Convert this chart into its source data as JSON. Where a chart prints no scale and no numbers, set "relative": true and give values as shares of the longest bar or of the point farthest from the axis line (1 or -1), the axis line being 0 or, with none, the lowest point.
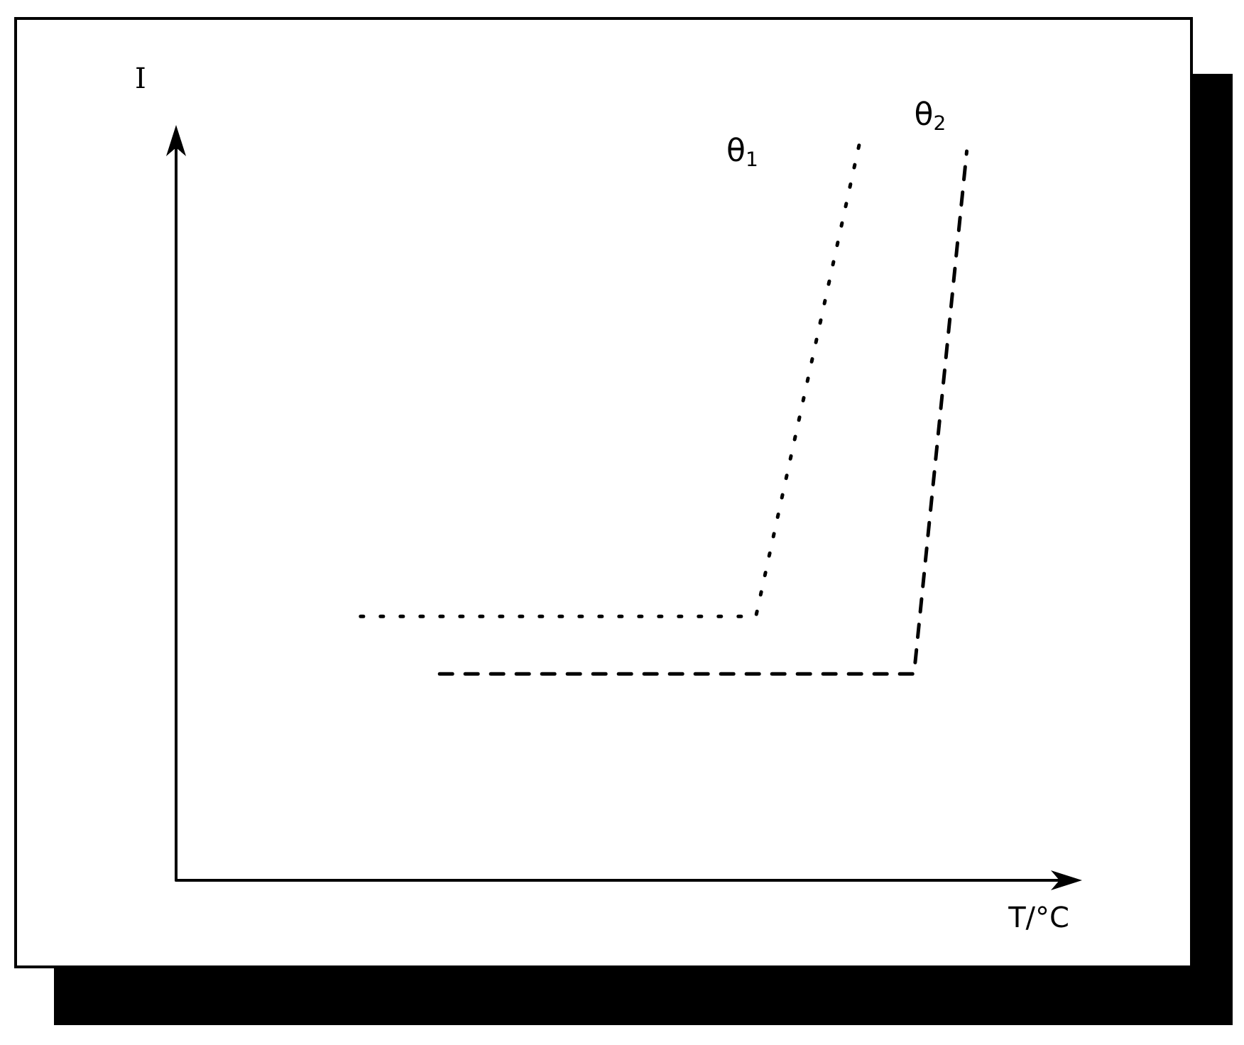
{
  "chart_data": {
    "type": "line",
    "relative": true,
    "xlabel": "T/°C",
    "ylabel": "I",
    "grid": false,
    "legend": false,
    "marker": "none",
    "categories": [
      null,
      null,
      null,
      null,
      null,
      null,
      null,
      null,
      null,
      null,
      null,
      null,
      null,
      null,
      null,
      null,
      null,
      null,
      null,
      null,
      null,
      null,
      null,
      null,
      null,
      null,
      null,
      null,
      null,
      null,
      null,
      null,
      null,
      null,
      null
    ],
    "series": [
      {
        "name": "θ$_{1}$",
        "color": "#000000",
        "line_style": "dotted",
        "values": [
          null,
          null,
          null,
          null,
          null,
          null,
          null,
          0.354,
          null,
          null,
          null,
          null,
          null,
          null,
          null,
          null,
          null,
          null,
          null,
          null,
          null,
          null,
          0.354,
          null,
          null,
          null,
          1,
          null,
          null,
          null,
          null,
          null,
          null,
          null,
          null
        ]
      },
      {
        "name": "θ$_{2}$",
        "color": "#000000",
        "line_style": "dashed",
        "values": [
          null,
          null,
          null,
          null,
          null,
          null,
          null,
          null,
          null,
          null,
          0.277,
          null,
          null,
          null,
          null,
          null,
          null,
          null,
          null,
          null,
          null,
          null,
          null,
          null,
          null,
          null,
          null,
          null,
          0.277,
          null,
          0.978,
          null,
          null,
          null,
          null
        ]
      }
    ]
  }
}
